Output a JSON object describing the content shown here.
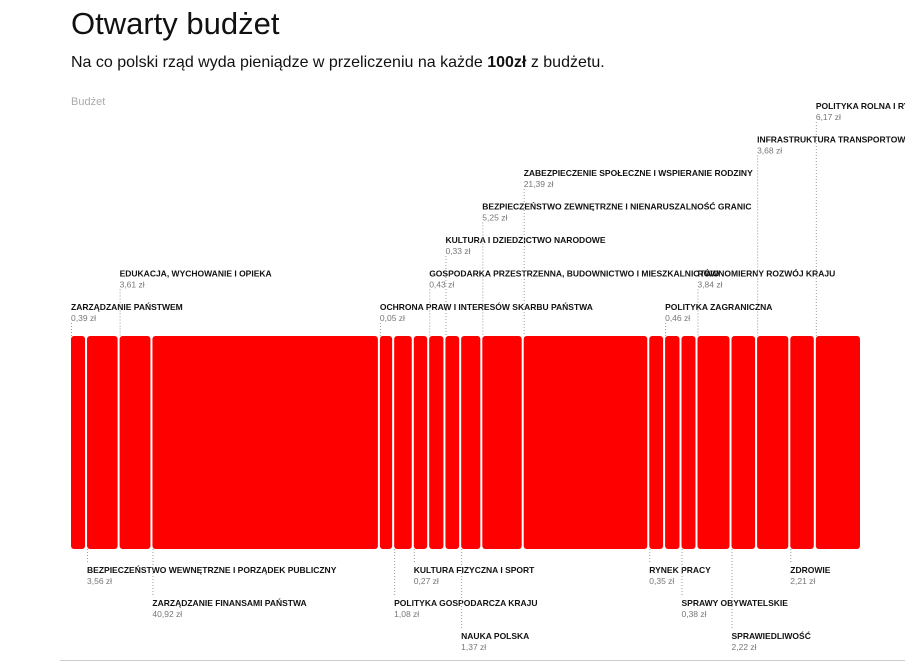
{
  "header": {
    "title": "Otwarty budżet",
    "subtitle_before": "Na co polski rząd wyda pieniądze w przeliczeniu na każde",
    "subtitle_bold": "100zł",
    "subtitle_after": "z budżetu.",
    "section": "Budżet"
  },
  "items": [
    {
      "name": "ZARZĄDZANIE PAŃSTWEM",
      "value": 0.39,
      "value_label": "0,39 zł"
    },
    {
      "name": "BEZPIECZEŃSTWO WEWNĘTRZNE I PORZĄDEK PUBLICZNY",
      "value": 3.56,
      "value_label": "3,56 zł"
    },
    {
      "name": "EDUKACJA, WYCHOWANIE I OPIEKA",
      "value": 3.61,
      "value_label": "3,61 zł"
    },
    {
      "name": "ZARZĄDZANIE FINANSAMI PAŃSTWA",
      "value": 40.92,
      "value_label": "40,92 zł"
    },
    {
      "name": "OCHRONA PRAW I INTERESÓW SKARBU PAŃSTWA",
      "value": 0.05,
      "value_label": "0,05 zł"
    },
    {
      "name": "POLITYKA GOSPODARCZA KRAJU",
      "value": 1.08,
      "value_label": "1,08 zł"
    },
    {
      "name": "KULTURA FIZYCZNA I SPORT",
      "value": 0.27,
      "value_label": "0,27 zł"
    },
    {
      "name": "GOSPODARKA PRZESTRZENNA, BUDOWNICTWO I MIESZKALNICTWO",
      "value": 0.43,
      "value_label": "0,43 zł"
    },
    {
      "name": "KULTURA I DZIEDZICTWO NARODOWE",
      "value": 0.33,
      "value_label": "0,33 zł"
    },
    {
      "name": "NAUKA POLSKA",
      "value": 1.37,
      "value_label": "1,37 zł"
    },
    {
      "name": "BEZPIECZEŃSTWO ZEWNĘTRZNE I NIENARUSZALNOŚĆ GRANIC",
      "value": 5.25,
      "value_label": "5,25 zł"
    },
    {
      "name": "ZABEZPIECZENIE SPOŁECZNE I WSPIERANIE RODZINY",
      "value": 21.39,
      "value_label": "21,39 zł"
    },
    {
      "name": "RYNEK PRACY",
      "value": 0.35,
      "value_label": "0,35 zł"
    },
    {
      "name": "POLITYKA ZAGRANICZNA",
      "value": 0.46,
      "value_label": "0,46 zł"
    },
    {
      "name": "SPRAWY OBYWATELSKIE",
      "value": 0.38,
      "value_label": "0,38 zł"
    },
    {
      "name": "RÓWNOMIERNY ROZWÓJ KRAJU",
      "value": 3.84,
      "value_label": "3,84 zł"
    },
    {
      "name": "SPRAWIEDLIWOŚĆ",
      "value": 2.22,
      "value_label": "2,22 zł"
    },
    {
      "name": "INFRASTRUKTURA TRANSPORTOWA",
      "value": 3.68,
      "value_label": "3,68 zł"
    },
    {
      "name": "ZDROWIE",
      "value": 2.21,
      "value_label": "2,21 zł"
    },
    {
      "name": "POLITYKA ROLNA I RYBACKA",
      "value": 6.17,
      "value_label": "6,17 zł"
    }
  ]
}
